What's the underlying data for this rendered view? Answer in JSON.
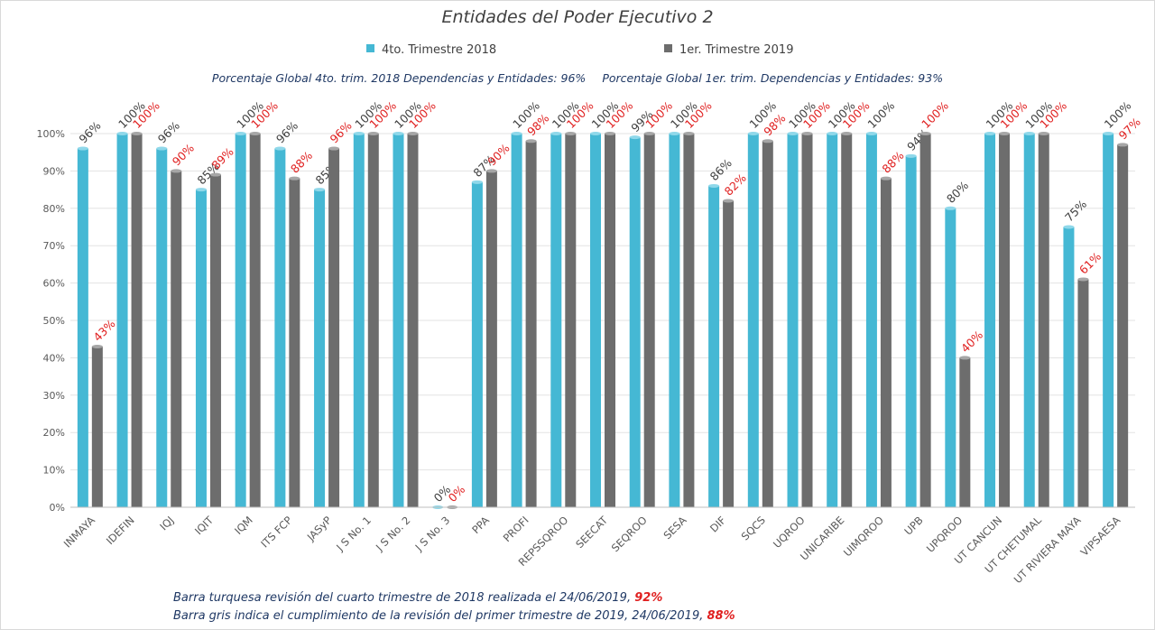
{
  "title": "Entidades del Poder Ejecutivo 2",
  "legend": [
    {
      "label": "4to. Trimestre 2018",
      "color": "#45b8d4"
    },
    {
      "label": "1er. Trimestre 2019",
      "color": "#6d6d6d"
    }
  ],
  "global": {
    "left": "Porcentaje Global 4to. trim. 2018 Dependencias y Entidades: 96%",
    "right": "Porcentaje Global  1er. trim. Dependencias y Entidades: 93%"
  },
  "footnotes": {
    "line1": {
      "text": "Barra turquesa  revisión del cuarto trimestre de 2018 realizada el  24/06/2019,",
      "pct": "92%"
    },
    "line2": {
      "text": "Barra gris indica el cumplimiento de la revisión del primer trimestre de 2019,  24/06/2019,",
      "pct": "88%"
    }
  },
  "chart_data": {
    "type": "bar",
    "title": "Entidades del Poder Ejecutivo 2",
    "categories": [
      "INMAYA",
      "IDEFIN",
      "IQJ",
      "IQIT",
      "IQM",
      "ITS FCP",
      "JASyP",
      "J S No. 1",
      "J S No. 2",
      "J S No. 3",
      "PPA",
      "PROFI",
      "REPSSQROO",
      "SEECAT",
      "SEQROO",
      "SESA",
      "DIF",
      "SQCS",
      "UQROO",
      "UNICARIBE",
      "UIMQROO",
      "UPB",
      "UPQROO",
      "UT CANCUN",
      "UT CHETUMAL",
      "UT RIVIERA MAYA",
      "VIPSAESA"
    ],
    "series": [
      {
        "name": "4to. Trimestre 2018",
        "color": "#45b8d4",
        "label_color": "#404040",
        "values": [
          96,
          100,
          96,
          85,
          100,
          96,
          85,
          100,
          100,
          0,
          87,
          100,
          100,
          100,
          99,
          100,
          86,
          100,
          100,
          100,
          100,
          94,
          80,
          100,
          100,
          75,
          100
        ]
      },
      {
        "name": "1er. Trimestre 2019",
        "color": "#6d6d6d",
        "label_color": "#e02020",
        "values": [
          43,
          100,
          90,
          89,
          100,
          88,
          96,
          100,
          100,
          0,
          90,
          98,
          100,
          100,
          100,
          100,
          82,
          98,
          100,
          100,
          88,
          100,
          40,
          100,
          100,
          61,
          97
        ]
      }
    ],
    "ylim": [
      0,
      100
    ],
    "yticks": [
      0,
      10,
      20,
      30,
      40,
      50,
      60,
      70,
      80,
      90,
      100
    ],
    "ytick_suffix": "%",
    "value_suffix": "%",
    "grid": true,
    "legend_position": "top"
  }
}
